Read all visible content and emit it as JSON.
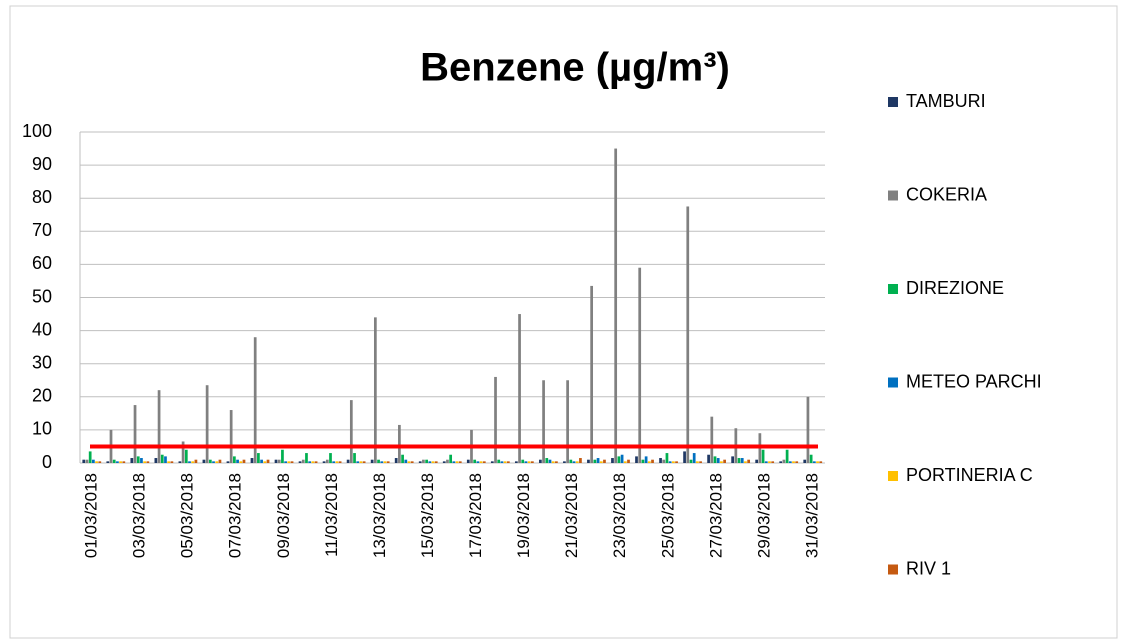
{
  "chart_data": {
    "type": "bar",
    "title": "Benzene (µg/m³)",
    "categories": [
      "01/03/2018",
      null,
      "03/03/2018",
      null,
      "05/03/2018",
      null,
      "07/03/2018",
      null,
      "09/03/2018",
      null,
      "11/03/2018",
      null,
      "13/03/2018",
      null,
      "15/03/2018",
      null,
      "17/03/2018",
      null,
      "19/03/2018",
      null,
      "21/03/2018",
      null,
      "23/03/2018",
      null,
      "25/03/2018",
      null,
      "27/03/2018",
      null,
      "29/03/2018",
      null,
      "31/03/2018"
    ],
    "series": [
      {
        "name": "TAMBURI",
        "color": "#1f3864",
        "values": [
          1,
          0.5,
          1.5,
          1.5,
          0.5,
          1,
          0.5,
          1.5,
          1,
          0.5,
          0.5,
          1,
          1,
          1.5,
          0.5,
          0.5,
          1,
          0.5,
          0.5,
          1,
          0.5,
          1,
          1.5,
          2,
          1.5,
          3.5,
          2.5,
          2,
          1,
          0.5,
          1
        ]
      },
      {
        "name": "COKERIA",
        "color": "#808080",
        "values": [
          1,
          10,
          17.5,
          22,
          6.5,
          23.5,
          16,
          38,
          1,
          1,
          1,
          19,
          44,
          11.5,
          1,
          1,
          10,
          26,
          45,
          25,
          25,
          53.5,
          95,
          59,
          1,
          77.5,
          14,
          10.5,
          9,
          1,
          20
        ]
      },
      {
        "name": "DIREZIONE",
        "color": "#00b050",
        "values": [
          3.5,
          1,
          2,
          2.5,
          4,
          1,
          2,
          3,
          4,
          3,
          3,
          3,
          1,
          2.5,
          1,
          2.5,
          1,
          1,
          1,
          1.5,
          1,
          1,
          2,
          1,
          3,
          1,
          2,
          1.5,
          4,
          4,
          2.5
        ]
      },
      {
        "name": "METEO PARCHI",
        "color": "#0070c0",
        "values": [
          1,
          0.5,
          1.5,
          2,
          0.5,
          0.5,
          1,
          1,
          0.5,
          0.5,
          0.5,
          0.5,
          0.5,
          1,
          0.5,
          0.5,
          0.5,
          0.5,
          0.5,
          1,
          0.5,
          1.5,
          2.5,
          2,
          0.5,
          3,
          1.5,
          1.5,
          0.5,
          0.5,
          0.5
        ]
      },
      {
        "name": "PORTINERIA C",
        "color": "#ffc000",
        "values": [
          0.5,
          0.5,
          0.5,
          0.5,
          0.5,
          0.5,
          0.5,
          0.5,
          0.5,
          0.5,
          0.5,
          0.5,
          0.5,
          0.5,
          0.5,
          0.5,
          0.5,
          0.5,
          0.5,
          0.5,
          0.5,
          0.5,
          0.5,
          0.5,
          0.5,
          0.5,
          0.5,
          0.5,
          0.5,
          0.5,
          0.5
        ]
      },
      {
        "name": "RIV 1",
        "color": "#c55a11",
        "values": [
          0.5,
          0.5,
          0.5,
          0.5,
          1,
          1,
          1,
          1,
          0.5,
          0.5,
          0.5,
          0.5,
          0.5,
          0.5,
          0.5,
          0.5,
          0.5,
          0.5,
          0.5,
          0.5,
          1.5,
          1,
          1,
          1,
          0.5,
          0.5,
          1,
          1,
          0.5,
          0.5,
          0.5
        ]
      }
    ],
    "reference_line": {
      "value": 5,
      "color": "#ff0000"
    },
    "ylim": [
      0,
      100
    ],
    "yticks": [
      0,
      10,
      20,
      30,
      40,
      50,
      60,
      70,
      80,
      90,
      100
    ],
    "grid": true,
    "legend": "right"
  }
}
